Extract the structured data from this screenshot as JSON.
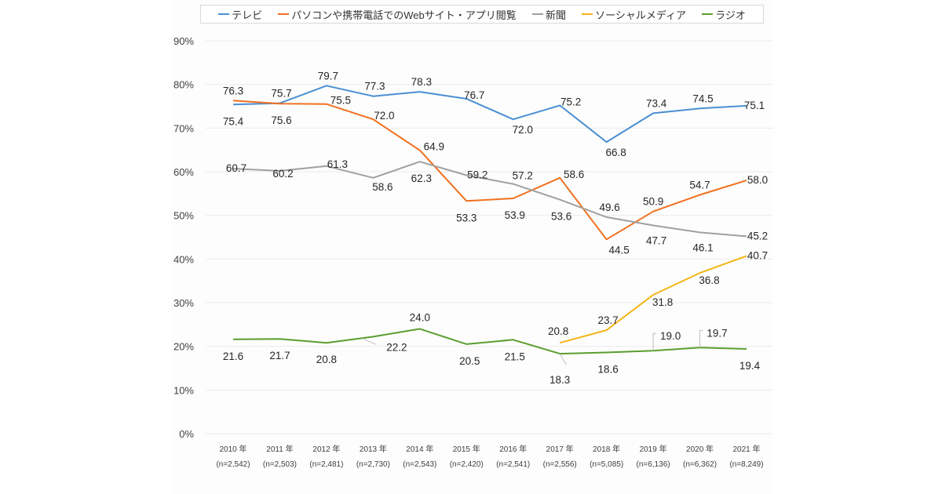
{
  "chart_data": {
    "type": "line",
    "title": "",
    "xlabel": "",
    "ylabel": "",
    "ylim": [
      0,
      90
    ],
    "y_unit": "%",
    "grid": true,
    "legend_position": "top",
    "y_ticks": [
      "0%",
      "10%",
      "20%",
      "30%",
      "40%",
      "50%",
      "60%",
      "70%",
      "80%",
      "90%"
    ],
    "y_tick_values": [
      0,
      10,
      20,
      30,
      40,
      50,
      60,
      70,
      80,
      90
    ],
    "categories": [
      "2010 年",
      "2011 年",
      "2012 年",
      "2013 年",
      "2014 年",
      "2015 年",
      "2016 年",
      "2017 年",
      "2018 年",
      "2019 年",
      "2020 年",
      "2021 年"
    ],
    "sample_sizes": [
      "(n=2,542)",
      "(n=2,503)",
      "(n=2,481)",
      "(n=2,730)",
      "(n=2,543)",
      "(n=2,420)",
      "(n=2,541)",
      "(n=2,556)",
      "(n=5,085)",
      "(n=6,136)",
      "(n=6,362)",
      "(n=8,249)"
    ],
    "series": [
      {
        "name": "テレビ",
        "color": "#4a8fd4",
        "values": [
          75.4,
          75.7,
          79.7,
          77.3,
          78.3,
          76.7,
          72.0,
          75.2,
          66.8,
          73.4,
          74.5,
          75.1
        ],
        "labels": [
          "75.4",
          "75.7",
          "79.7",
          "77.3",
          "78.3",
          "76.7",
          "72.0",
          "75.2",
          "66.8",
          "73.4",
          "74.5",
          "75.1"
        ]
      },
      {
        "name": "パソコンや携帯電話でのWebサイト・アプリ閲覧",
        "color": "#f07020",
        "values": [
          76.3,
          75.6,
          75.5,
          72.0,
          64.9,
          53.3,
          53.9,
          58.6,
          44.5,
          50.9,
          54.7,
          58.0
        ],
        "labels": [
          "76.3",
          "75.6",
          "75.5",
          "72.0",
          "64.9",
          "53.3",
          "53.9",
          "58.6",
          "44.5",
          "50.9",
          "54.7",
          "58.0"
        ]
      },
      {
        "name": "新聞",
        "color": "#a0a0a0",
        "values": [
          60.7,
          60.2,
          61.3,
          58.6,
          62.3,
          59.2,
          57.2,
          53.6,
          49.6,
          47.7,
          46.1,
          45.2
        ],
        "labels": [
          "60.7",
          "60.2",
          "61.3",
          "58.6",
          "62.3",
          "59.2",
          "57.2",
          "53.6",
          "49.6",
          "47.7",
          "46.1",
          "45.2"
        ]
      },
      {
        "name": "ソーシャルメディア",
        "color": "#f5b417",
        "values": [
          null,
          null,
          null,
          null,
          null,
          null,
          null,
          20.8,
          23.7,
          31.8,
          36.8,
          40.7
        ],
        "labels": [
          null,
          null,
          null,
          null,
          null,
          null,
          null,
          "20.8",
          "23.7",
          "31.8",
          "36.8",
          "40.7"
        ]
      },
      {
        "name": "ラジオ",
        "color": "#5a9e2f",
        "values": [
          21.6,
          21.7,
          20.8,
          22.2,
          24.0,
          20.5,
          21.5,
          18.3,
          18.6,
          19.0,
          19.7,
          19.4
        ],
        "labels": [
          "21.6",
          "21.7",
          "20.8",
          "22.2",
          "24.0",
          "20.5",
          "21.5",
          "18.3",
          "18.6",
          "19.0",
          "19.7",
          "19.4"
        ]
      }
    ]
  }
}
